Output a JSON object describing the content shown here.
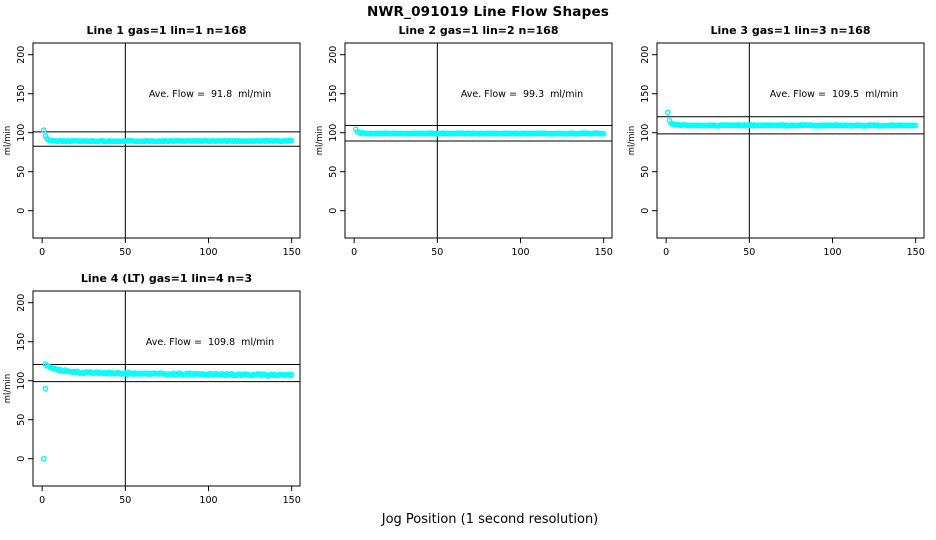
{
  "page": {
    "title": "NWR_091019  Line Flow Shapes",
    "xlabel": "Jog Position (1 second resolution)"
  },
  "colors": {
    "point": "#00ffff",
    "line": "#000000",
    "text": "#000000",
    "background": "#ffffff"
  },
  "chart_data": [
    {
      "type": "scatter",
      "title": "Line 1 gas=1 lin=1 n=168",
      "annotation": "Ave. Flow =  91.8  ml/min",
      "ave_flow": 91.8,
      "n": 168,
      "ylabel": "ml/min",
      "x_ticks": [
        0,
        50,
        100,
        150
      ],
      "y_ticks": [
        0,
        50,
        100,
        150,
        200
      ],
      "xlim": [
        -5.5,
        155
      ],
      "ylim": [
        -35,
        215
      ],
      "vline_x": 50,
      "hlines": [
        100.98,
        82.62
      ],
      "marker": "open-circle",
      "grid": false,
      "x_range": [
        1,
        150
      ],
      "keypoints": [
        [
          1,
          103
        ],
        [
          2,
          96
        ],
        [
          3,
          92
        ],
        [
          4,
          90.5
        ],
        [
          6,
          89.6
        ],
        [
          12,
          89.2
        ],
        [
          150,
          89.4
        ]
      ],
      "outliers": [],
      "noise": 0.5,
      "seed": 11
    },
    {
      "type": "scatter",
      "title": "Line 2 gas=1 lin=2 n=168",
      "annotation": "Ave. Flow =  99.3  ml/min",
      "ave_flow": 99.3,
      "n": 168,
      "ylabel": "ml/min",
      "x_ticks": [
        0,
        50,
        100,
        150
      ],
      "y_ticks": [
        0,
        50,
        100,
        150,
        200
      ],
      "xlim": [
        -5.5,
        155
      ],
      "ylim": [
        -35,
        215
      ],
      "vline_x": 50,
      "hlines": [
        109.23,
        89.37
      ],
      "marker": "open-circle",
      "grid": false,
      "x_range": [
        1,
        150
      ],
      "keypoints": [
        [
          1,
          104.5
        ],
        [
          2,
          101.5
        ],
        [
          3,
          100
        ],
        [
          6,
          99.2
        ],
        [
          12,
          99
        ],
        [
          150,
          99
        ]
      ],
      "outliers": [],
      "noise": 0.45,
      "seed": 22
    },
    {
      "type": "scatter",
      "title": "Line 3 gas=1 lin=3 n=168",
      "annotation": "Ave. Flow =  109.5  ml/min",
      "ave_flow": 109.5,
      "n": 168,
      "ylabel": "ml/min",
      "x_ticks": [
        0,
        50,
        100,
        150
      ],
      "y_ticks": [
        0,
        50,
        100,
        150,
        200
      ],
      "xlim": [
        -5.5,
        155
      ],
      "ylim": [
        -35,
        215
      ],
      "vline_x": 50,
      "hlines": [
        120.45,
        98.55
      ],
      "marker": "open-circle",
      "grid": false,
      "x_range": [
        1,
        150
      ],
      "keypoints": [
        [
          1,
          125.5
        ],
        [
          2,
          115
        ],
        [
          3,
          111.5
        ],
        [
          6,
          110
        ],
        [
          12,
          109.4
        ],
        [
          150,
          109.3
        ]
      ],
      "outliers": [],
      "noise": 0.6,
      "seed": 33
    },
    {
      "type": "scatter",
      "title": "Line 4 (LT) gas=1 lin=4 n=3",
      "annotation": "Ave. Flow =  109.8  ml/min",
      "ave_flow": 109.8,
      "n": 3,
      "ylabel": "ml/min",
      "x_ticks": [
        0,
        50,
        100,
        150
      ],
      "y_ticks": [
        0,
        50,
        100,
        150,
        200
      ],
      "xlim": [
        -5.5,
        155
      ],
      "ylim": [
        -35,
        215
      ],
      "vline_x": 50,
      "hlines": [
        120.78,
        98.82
      ],
      "marker": "open-circle",
      "grid": false,
      "x_range": [
        2,
        150
      ],
      "keypoints": [
        [
          2,
          121
        ],
        [
          3,
          119
        ],
        [
          6,
          116
        ],
        [
          12,
          113
        ],
        [
          25,
          110.5
        ],
        [
          50,
          109.3
        ],
        [
          90,
          108.3
        ],
        [
          130,
          107.4
        ],
        [
          150,
          107
        ]
      ],
      "outliers": [
        [
          1,
          0
        ],
        [
          2,
          90
        ]
      ],
      "noise": 1.1,
      "seed": 44
    }
  ]
}
